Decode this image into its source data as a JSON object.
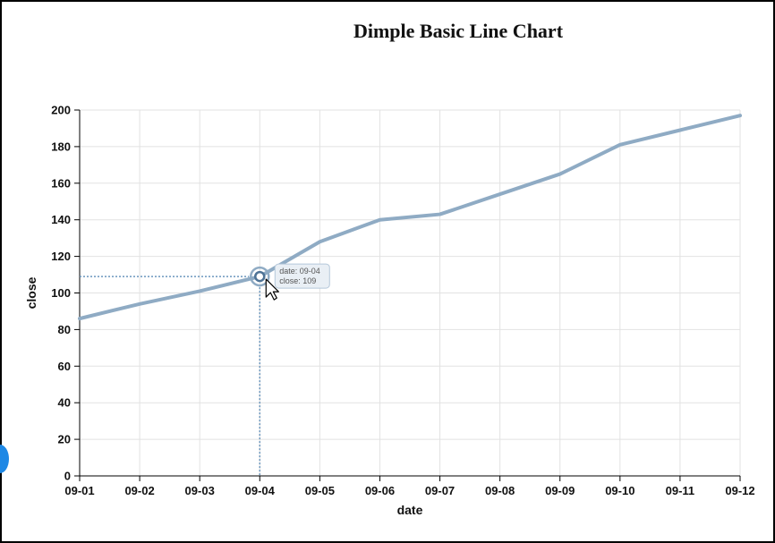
{
  "chart_data": {
    "type": "line",
    "title": "Dimple Basic Line Chart",
    "xlabel": "date",
    "ylabel": "close",
    "x": [
      "09-01",
      "09-02",
      "09-03",
      "09-04",
      "09-05",
      "09-06",
      "09-07",
      "09-08",
      "09-09",
      "09-10",
      "09-11",
      "09-12"
    ],
    "series": [
      {
        "values": [
          86,
          94,
          101,
          109,
          128,
          140,
          143,
          154,
          165,
          181,
          189,
          197
        ]
      }
    ],
    "ylim": [
      0,
      200
    ],
    "yticks": [
      0,
      20,
      40,
      60,
      80,
      100,
      120,
      140,
      160,
      180,
      200
    ],
    "grid": true,
    "colors": {
      "line": "#8fabc4",
      "grid": "#e2e2e2",
      "axis": "#000000",
      "guide": "#6b96bd"
    },
    "tooltip": {
      "index": 3,
      "line1": "date: 09-04",
      "line2": "close: 109"
    }
  }
}
